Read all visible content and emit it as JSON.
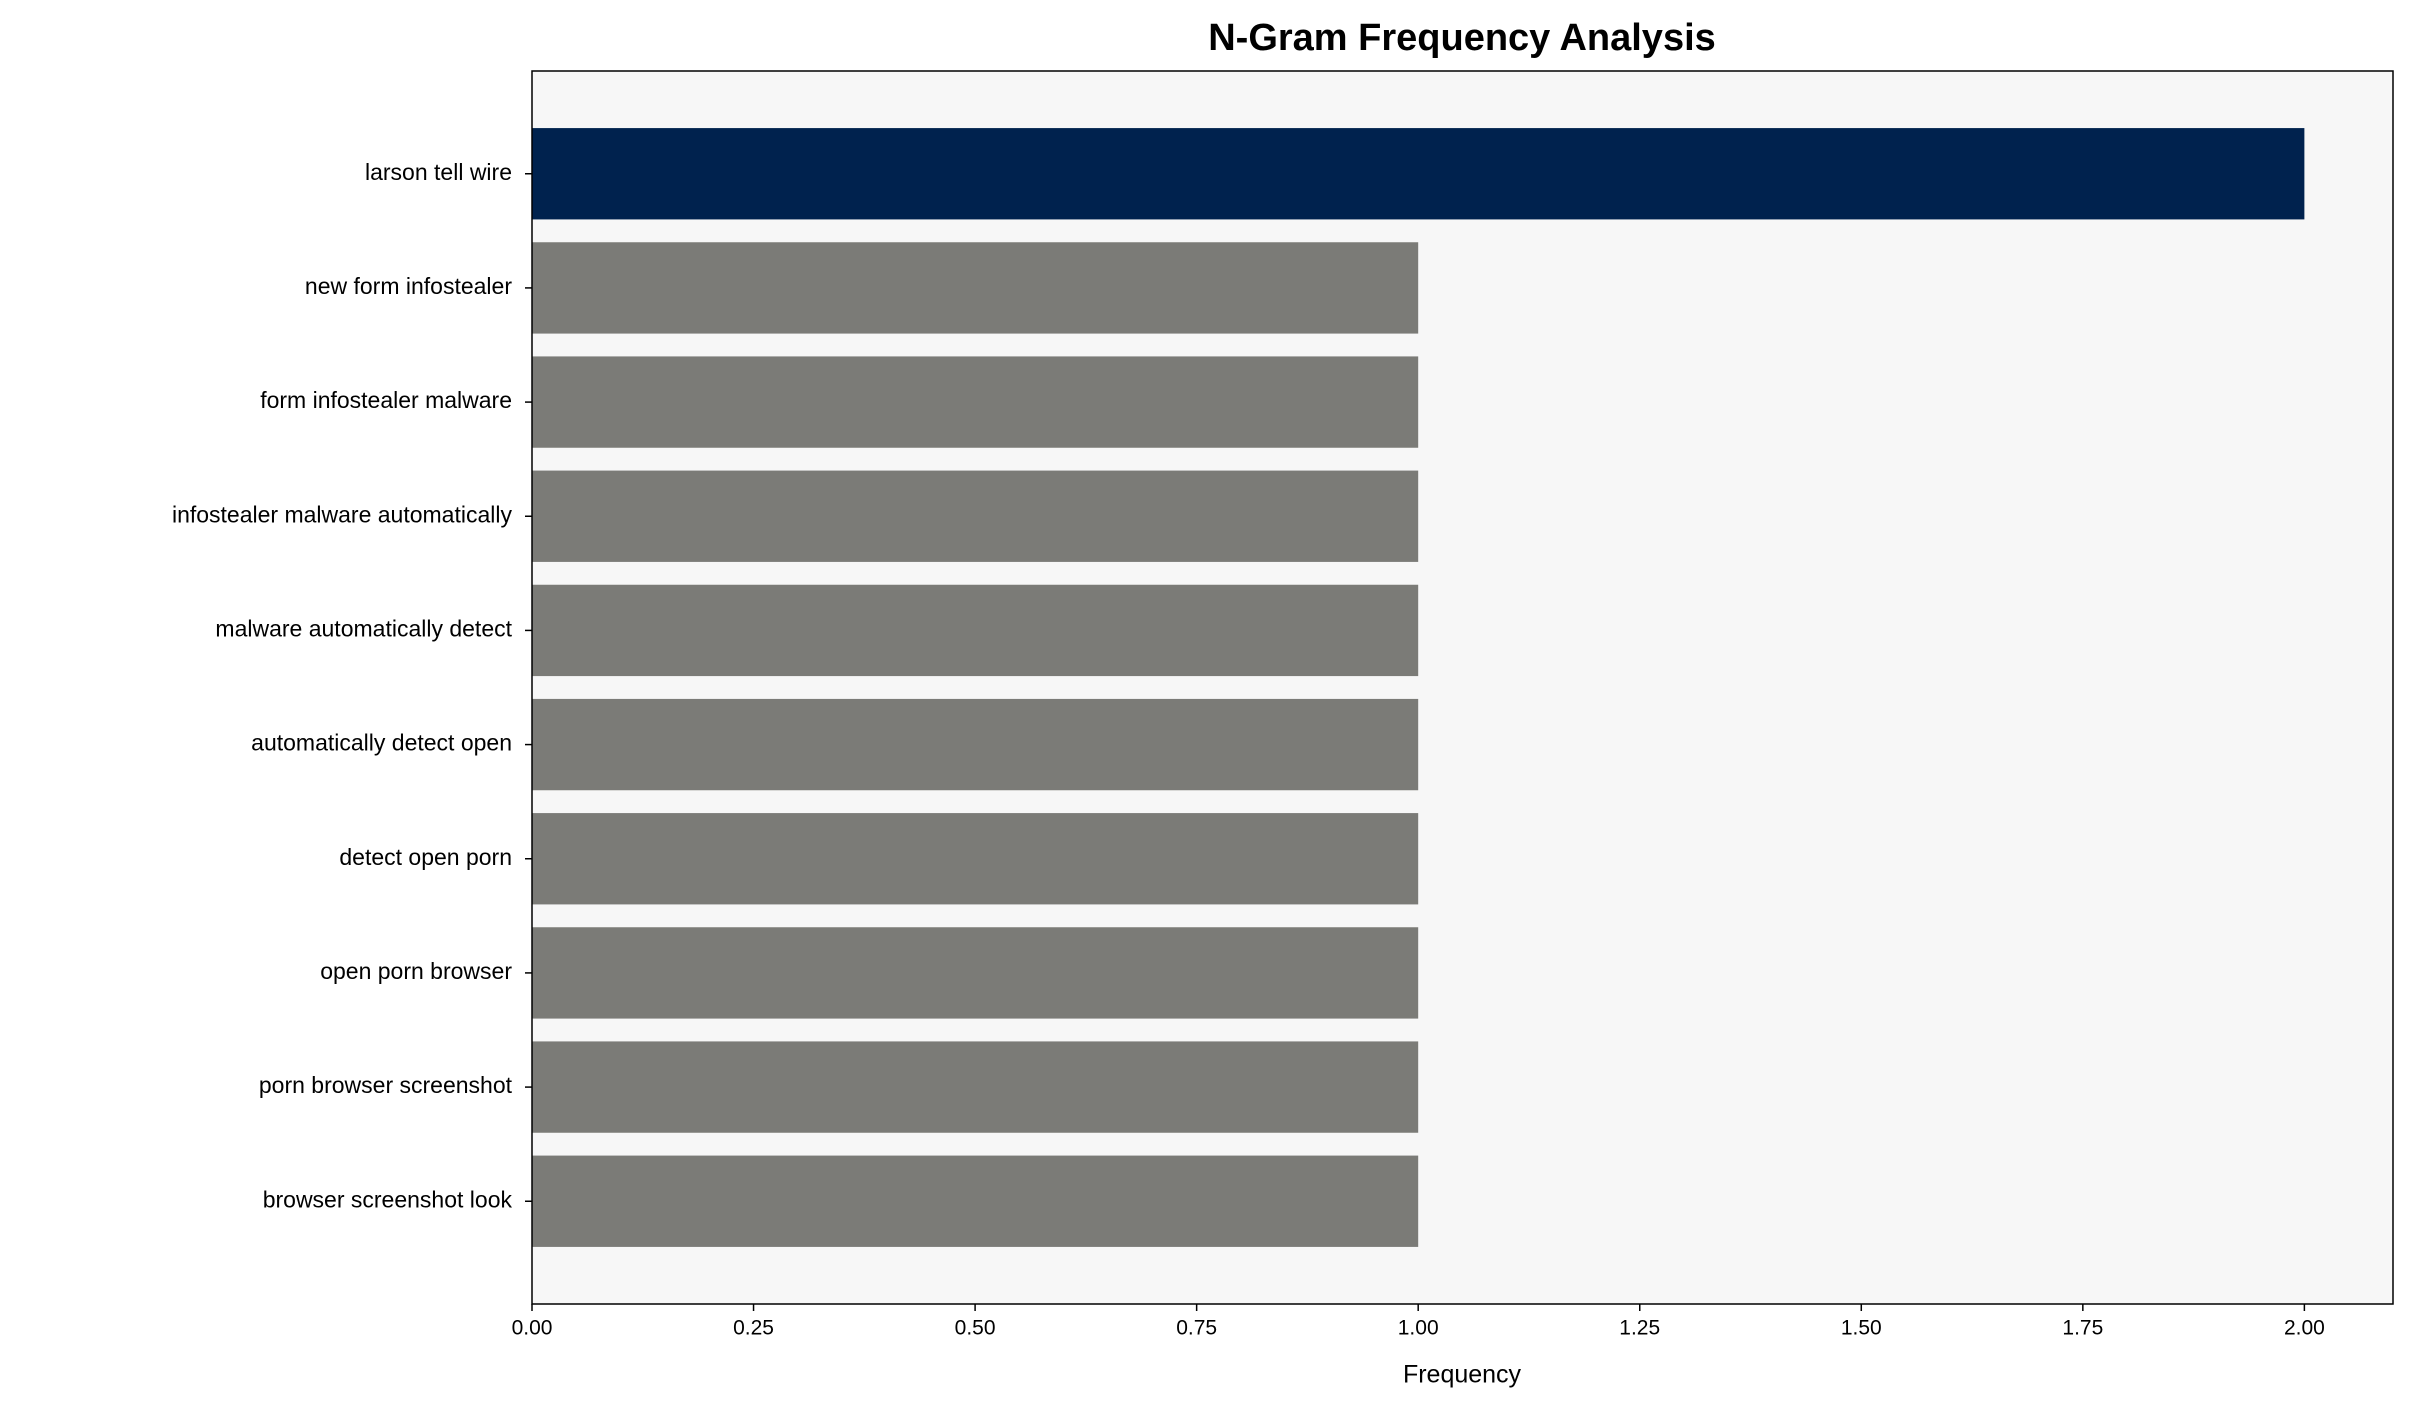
{
  "chart_data": {
    "type": "barh",
    "title": "N-Gram Frequency Analysis",
    "xlabel": "Frequency",
    "categories": [
      "larson tell wire",
      "new form infostealer",
      "form infostealer malware",
      "infostealer malware automatically",
      "malware automatically detect",
      "automatically detect open",
      "detect open porn",
      "open porn browser",
      "porn browser screenshot",
      "browser screenshot look"
    ],
    "values": [
      2,
      1,
      1,
      1,
      1,
      1,
      1,
      1,
      1,
      1
    ],
    "colors": [
      "#00224e",
      "#7b7b77",
      "#7b7b77",
      "#7b7b77",
      "#7b7b77",
      "#7b7b77",
      "#7b7b77",
      "#7b7b77",
      "#7b7b77",
      "#7b7b77"
    ],
    "xlim": [
      0,
      2.1
    ],
    "xticks": [
      {
        "value": 0,
        "label": "0.00"
      },
      {
        "value": 0.25,
        "label": "0.25"
      },
      {
        "value": 0.5,
        "label": "0.50"
      },
      {
        "value": 0.75,
        "label": "0.75"
      },
      {
        "value": 1,
        "label": "1.00"
      },
      {
        "value": 1.25,
        "label": "1.25"
      },
      {
        "value": 1.5,
        "label": "1.50"
      },
      {
        "value": 1.75,
        "label": "1.75"
      },
      {
        "value": 2,
        "label": "2.00"
      }
    ],
    "grid": false
  }
}
